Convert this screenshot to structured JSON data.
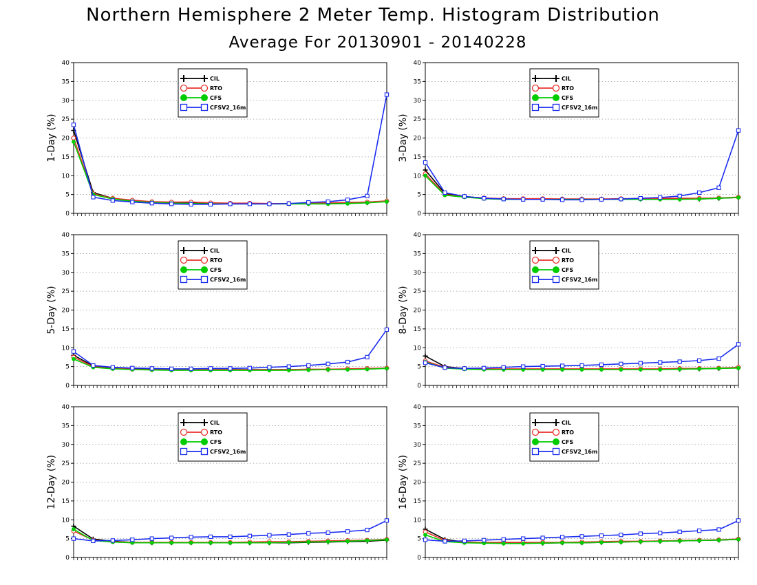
{
  "figure": {
    "title": "Northern Hemisphere 2 Meter Temp. Histogram Distribution",
    "subtitle": "Average For 20130901 - 20140228"
  },
  "colors": {
    "CIL": "#000000",
    "RTO": "#e8322b",
    "CFS": "#00cc00",
    "CFSV2_16m": "#1a2cf0",
    "grid": "#9a9a9a"
  },
  "chart_data": [
    {
      "type": "line",
      "ylabel": "1-Day (%)",
      "ylim": [
        0,
        40
      ],
      "yticks": [
        0,
        5,
        10,
        15,
        20,
        25,
        30,
        35,
        40
      ],
      "x_count": 17,
      "grid": true,
      "legend_position": "top-left",
      "series": [
        {
          "name": "CIL",
          "marker": "plus",
          "values": [
            22,
            5.5,
            4.0,
            3.3,
            3.0,
            2.8,
            2.7,
            2.6,
            2.6,
            2.6,
            2.6,
            2.6,
            2.6,
            2.6,
            2.7,
            2.8,
            3.2
          ]
        },
        {
          "name": "RTO",
          "marker": "open-circle",
          "values": [
            20,
            5.2,
            4.0,
            3.5,
            3.1,
            3.0,
            3.0,
            2.8,
            2.7,
            2.7,
            2.6,
            2.6,
            2.7,
            2.8,
            2.9,
            3.0,
            3.3
          ]
        },
        {
          "name": "CFS",
          "marker": "filled-circle",
          "values": [
            19,
            5.0,
            3.8,
            3.2,
            2.9,
            2.7,
            2.6,
            2.5,
            2.5,
            2.5,
            2.5,
            2.5,
            2.5,
            2.5,
            2.6,
            2.8,
            3.1
          ]
        },
        {
          "name": "CFSV2_16m",
          "marker": "open-square",
          "values": [
            23.5,
            4.3,
            3.4,
            3.0,
            2.7,
            2.5,
            2.4,
            2.4,
            2.5,
            2.5,
            2.5,
            2.6,
            2.9,
            3.1,
            3.6,
            4.6,
            31.5
          ]
        }
      ]
    },
    {
      "type": "line",
      "ylabel": "3-Day (%)",
      "ylim": [
        0,
        40
      ],
      "yticks": [
        0,
        5,
        10,
        15,
        20,
        25,
        30,
        35,
        40
      ],
      "x_count": 17,
      "grid": true,
      "legend_position": "top-center",
      "series": [
        {
          "name": "CIL",
          "marker": "plus",
          "values": [
            11.5,
            5.3,
            4.5,
            4.0,
            3.9,
            3.8,
            3.8,
            3.8,
            3.8,
            3.8,
            3.8,
            3.8,
            3.8,
            3.8,
            3.8,
            4.0,
            4.2
          ]
        },
        {
          "name": "RTO",
          "marker": "open-circle",
          "values": [
            10.5,
            5.0,
            4.4,
            4.1,
            3.9,
            3.9,
            3.9,
            3.8,
            3.8,
            3.8,
            3.9,
            3.9,
            4.0,
            4.0,
            4.0,
            4.1,
            4.3
          ]
        },
        {
          "name": "CFS",
          "marker": "filled-circle",
          "values": [
            10,
            4.8,
            4.3,
            3.9,
            3.7,
            3.7,
            3.7,
            3.7,
            3.7,
            3.7,
            3.7,
            3.7,
            3.7,
            3.7,
            3.8,
            4.0,
            4.2
          ]
        },
        {
          "name": "CFSV2_16m",
          "marker": "open-square",
          "values": [
            13.5,
            5.5,
            4.5,
            4.0,
            3.8,
            3.7,
            3.7,
            3.6,
            3.6,
            3.7,
            3.8,
            4.0,
            4.2,
            4.6,
            5.5,
            6.8,
            22.0
          ]
        }
      ]
    },
    {
      "type": "line",
      "ylabel": "5-Day (%)",
      "ylim": [
        0,
        40
      ],
      "yticks": [
        0,
        5,
        10,
        15,
        20,
        25,
        30,
        35,
        40
      ],
      "x_count": 17,
      "grid": true,
      "legend_position": "top-left",
      "series": [
        {
          "name": "CIL",
          "marker": "plus",
          "values": [
            8.0,
            5.2,
            4.6,
            4.4,
            4.3,
            4.2,
            4.2,
            4.2,
            4.2,
            4.2,
            4.2,
            4.2,
            4.2,
            4.2,
            4.3,
            4.4,
            4.6
          ]
        },
        {
          "name": "RTO",
          "marker": "open-circle",
          "values": [
            7.5,
            5.0,
            4.5,
            4.3,
            4.2,
            4.2,
            4.2,
            4.2,
            4.2,
            4.2,
            4.2,
            4.2,
            4.3,
            4.3,
            4.4,
            4.5,
            4.6
          ]
        },
        {
          "name": "CFS",
          "marker": "filled-circle",
          "values": [
            7.0,
            4.8,
            4.4,
            4.2,
            4.1,
            4.0,
            4.0,
            4.0,
            4.0,
            4.0,
            4.0,
            4.0,
            4.1,
            4.2,
            4.2,
            4.3,
            4.5
          ]
        },
        {
          "name": "CFSV2_16m",
          "marker": "open-square",
          "values": [
            9.0,
            5.3,
            4.8,
            4.6,
            4.5,
            4.4,
            4.4,
            4.5,
            4.5,
            4.6,
            4.8,
            5.0,
            5.3,
            5.7,
            6.2,
            7.5,
            14.8
          ]
        }
      ]
    },
    {
      "type": "line",
      "ylabel": "8-Day (%)",
      "ylim": [
        0,
        40
      ],
      "yticks": [
        0,
        5,
        10,
        15,
        20,
        25,
        30,
        35,
        40
      ],
      "x_count": 17,
      "grid": true,
      "legend_position": "top-center",
      "series": [
        {
          "name": "CIL",
          "marker": "plus",
          "values": [
            7.8,
            5.0,
            4.5,
            4.4,
            4.3,
            4.3,
            4.3,
            4.3,
            4.3,
            4.3,
            4.3,
            4.3,
            4.3,
            4.3,
            4.4,
            4.5,
            4.7
          ]
        },
        {
          "name": "RTO",
          "marker": "open-circle",
          "values": [
            6.5,
            4.8,
            4.5,
            4.4,
            4.4,
            4.4,
            4.4,
            4.4,
            4.4,
            4.4,
            4.4,
            4.4,
            4.4,
            4.5,
            4.5,
            4.6,
            4.8
          ]
        },
        {
          "name": "CFS",
          "marker": "filled-circle",
          "values": [
            6.2,
            4.6,
            4.3,
            4.2,
            4.2,
            4.2,
            4.2,
            4.2,
            4.2,
            4.2,
            4.2,
            4.2,
            4.2,
            4.3,
            4.4,
            4.5,
            4.6
          ]
        },
        {
          "name": "CFSV2_16m",
          "marker": "open-square",
          "values": [
            6.0,
            4.7,
            4.5,
            4.6,
            4.8,
            5.0,
            5.1,
            5.2,
            5.3,
            5.5,
            5.7,
            5.9,
            6.1,
            6.3,
            6.6,
            7.1,
            10.9
          ]
        }
      ]
    },
    {
      "type": "line",
      "ylabel": "12-Day (%)",
      "ylim": [
        0,
        40
      ],
      "yticks": [
        0,
        5,
        10,
        15,
        20,
        25,
        30,
        35,
        40
      ],
      "x_count": 17,
      "grid": true,
      "legend_position": "top-left",
      "series": [
        {
          "name": "CIL",
          "marker": "plus",
          "values": [
            8.3,
            4.9,
            4.3,
            4.0,
            3.9,
            3.9,
            3.9,
            3.9,
            3.9,
            3.9,
            3.9,
            3.9,
            4.0,
            4.1,
            4.2,
            4.3,
            4.6
          ]
        },
        {
          "name": "RTO",
          "marker": "open-circle",
          "values": [
            7.0,
            4.6,
            4.2,
            4.0,
            4.0,
            4.0,
            4.0,
            4.0,
            4.0,
            4.1,
            4.2,
            4.2,
            4.3,
            4.4,
            4.5,
            4.6,
            4.8
          ]
        },
        {
          "name": "CFS",
          "marker": "filled-circle",
          "values": [
            7.5,
            4.5,
            4.1,
            3.9,
            3.9,
            3.9,
            3.9,
            3.9,
            3.9,
            3.9,
            3.9,
            4.0,
            4.1,
            4.2,
            4.3,
            4.5,
            4.7
          ]
        },
        {
          "name": "CFSV2_16m",
          "marker": "open-square",
          "values": [
            5.0,
            4.4,
            4.5,
            4.7,
            5.0,
            5.2,
            5.4,
            5.5,
            5.5,
            5.7,
            5.9,
            6.1,
            6.4,
            6.6,
            6.9,
            7.3,
            9.8
          ]
        }
      ]
    },
    {
      "type": "line",
      "ylabel": "16-Day (%)",
      "ylim": [
        0,
        40
      ],
      "yticks": [
        0,
        5,
        10,
        15,
        20,
        25,
        30,
        35,
        40
      ],
      "x_count": 17,
      "grid": true,
      "legend_position": "top-center",
      "series": [
        {
          "name": "CIL",
          "marker": "plus",
          "values": [
            7.5,
            4.8,
            4.1,
            3.9,
            3.8,
            3.8,
            3.8,
            3.9,
            3.9,
            4.0,
            4.1,
            4.2,
            4.3,
            4.4,
            4.5,
            4.6,
            4.8
          ]
        },
        {
          "name": "RTO",
          "marker": "open-circle",
          "values": [
            6.8,
            4.5,
            4.1,
            4.0,
            4.0,
            4.0,
            4.0,
            4.0,
            4.1,
            4.2,
            4.3,
            4.3,
            4.4,
            4.5,
            4.6,
            4.7,
            4.9
          ]
        },
        {
          "name": "CFS",
          "marker": "filled-circle",
          "values": [
            6.0,
            4.2,
            3.9,
            3.8,
            3.7,
            3.7,
            3.8,
            3.9,
            3.9,
            4.0,
            4.1,
            4.2,
            4.3,
            4.4,
            4.5,
            4.6,
            4.8
          ]
        },
        {
          "name": "CFSV2_16m",
          "marker": "open-square",
          "values": [
            4.7,
            4.3,
            4.4,
            4.6,
            4.8,
            5.0,
            5.2,
            5.4,
            5.6,
            5.8,
            6.0,
            6.3,
            6.5,
            6.8,
            7.1,
            7.4,
            9.8
          ]
        }
      ]
    }
  ]
}
